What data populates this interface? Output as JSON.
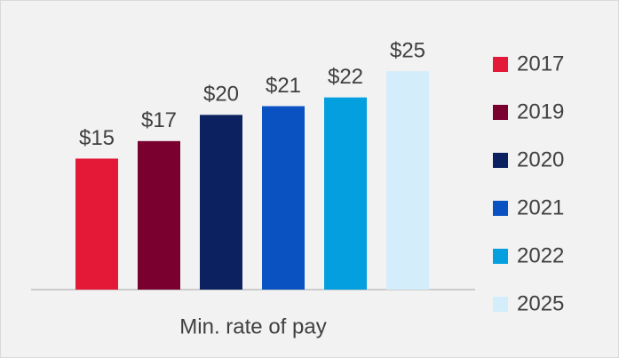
{
  "chart_data": {
    "type": "bar",
    "categories": [
      "Min. rate of pay"
    ],
    "series": [
      {
        "name": "2017",
        "color": "#e31937",
        "values": [
          15
        ],
        "value_labels": [
          "$15"
        ]
      },
      {
        "name": "2019",
        "color": "#7a0030",
        "values": [
          17
        ],
        "value_labels": [
          "$17"
        ]
      },
      {
        "name": "2020",
        "color": "#0b2160",
        "values": [
          20
        ],
        "value_labels": [
          "$20"
        ]
      },
      {
        "name": "2021",
        "color": "#0a52c2",
        "values": [
          21
        ],
        "value_labels": [
          "$21"
        ]
      },
      {
        "name": "2022",
        "color": "#049fdf",
        "values": [
          22
        ],
        "value_labels": [
          "$22"
        ]
      },
      {
        "name": "2025",
        "color": "#d4edfa",
        "values": [
          25
        ],
        "value_labels": [
          "$25"
        ]
      }
    ],
    "ylim": [
      0,
      30
    ],
    "legend": "right"
  }
}
